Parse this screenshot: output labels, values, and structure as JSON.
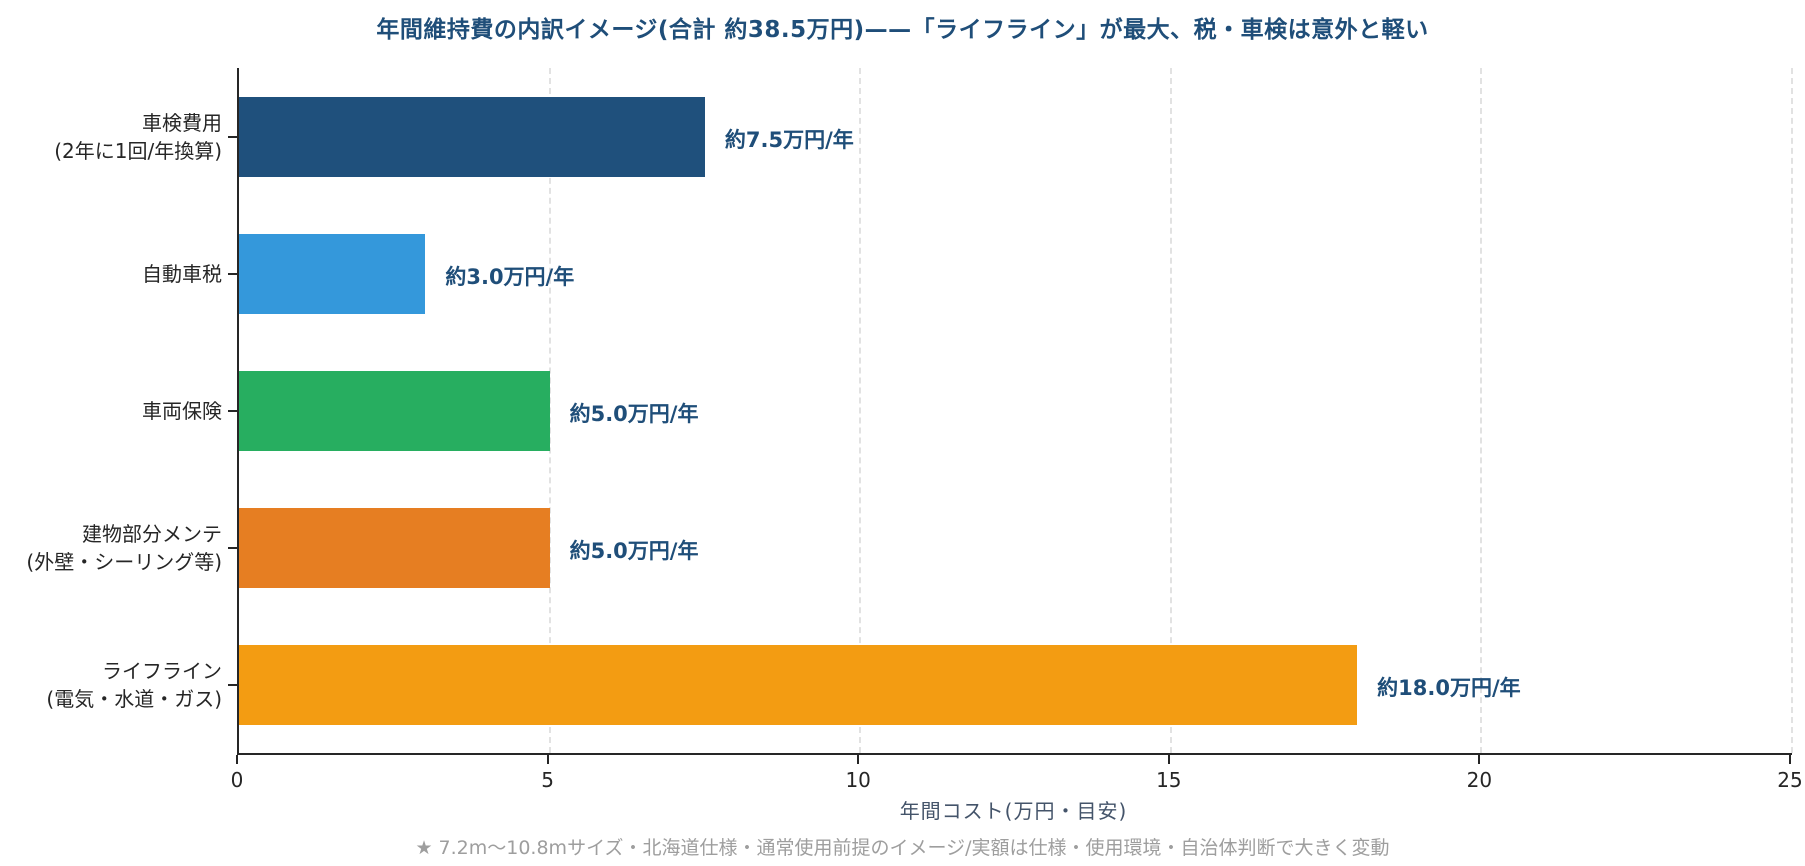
{
  "chart_data": {
    "type": "bar",
    "orientation": "horizontal",
    "title": "年間維持費の内訳イメージ(合計 約38.5万円)——「ライフライン」が最大、税・車検は意外と軽い",
    "categories": [
      {
        "lines": [
          "車検費用",
          "(2年に1回/年換算)"
        ]
      },
      {
        "lines": [
          "自動車税"
        ]
      },
      {
        "lines": [
          "車両保険"
        ]
      },
      {
        "lines": [
          "建物部分メンテ",
          "(外壁・シーリング等)"
        ]
      },
      {
        "lines": [
          "ライフライン",
          "(電気・水道・ガス)"
        ]
      }
    ],
    "values": [
      7.5,
      3.0,
      5.0,
      5.0,
      18.0
    ],
    "value_labels": [
      "約7.5万円/年",
      "約3.0万円/年",
      "約5.0万円/年",
      "約5.0万円/年",
      "約18.0万円/年"
    ],
    "bar_colors": [
      "#1F507C",
      "#3498DB",
      "#27AE60",
      "#E67E22",
      "#F39C12"
    ],
    "xlabel": "年間コスト(万円・目安)",
    "xlim": [
      0,
      25
    ],
    "xticks": [
      0,
      5,
      10,
      15,
      20,
      25
    ],
    "grid": "vertical-dashed",
    "legend": "none",
    "footnote": "★ 7.2m〜10.8mサイズ・北海道仕様・通常使用前提のイメージ/実額は仕様・使用環境・自治体判断で大きく変動"
  },
  "style": {
    "title_color": "#1F4E79",
    "value_label_color": "#1F4E79",
    "axis_color": "#262626",
    "xlabel_color": "#44546A",
    "footnote_color": "#9E9E9E",
    "gridline_color": "#E2E2E2",
    "background": "#FFFFFF"
  }
}
